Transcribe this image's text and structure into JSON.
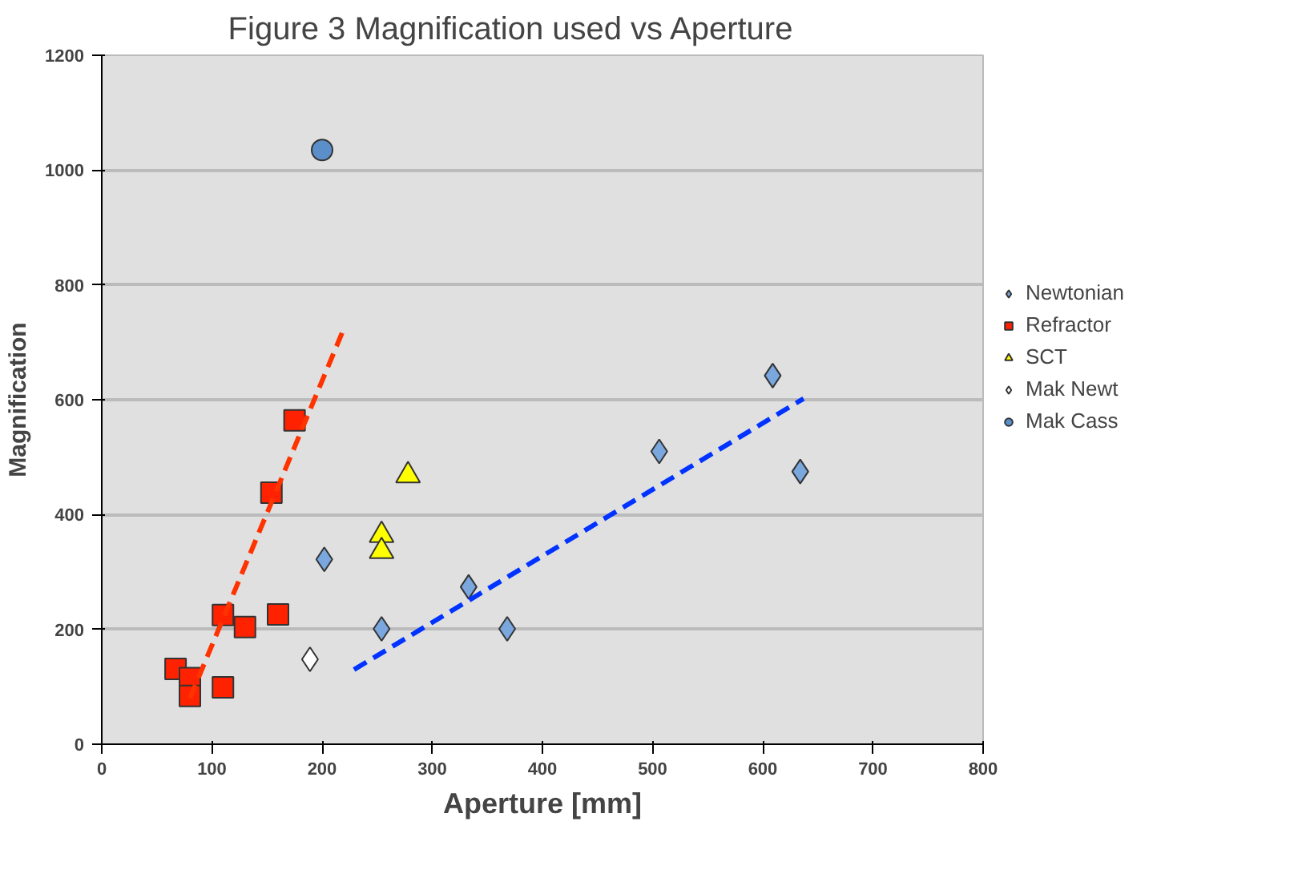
{
  "chart_data": {
    "type": "scatter",
    "title": "Figure 3        Magnification used vs Aperture",
    "xlabel": "Aperture [mm]",
    "ylabel": "Magnification",
    "xlim": [
      0,
      800
    ],
    "ylim": [
      0,
      1200
    ],
    "xticks": [
      0,
      100,
      200,
      300,
      400,
      500,
      600,
      700,
      800
    ],
    "yticks": [
      0,
      200,
      400,
      600,
      800,
      1000,
      1200
    ],
    "grid": "y",
    "legend": "right",
    "series": [
      {
        "name": "Newtonian",
        "type": "scatter",
        "marker": "diamond",
        "color": "#7aa7dd",
        "x": [
          202,
          254,
          333,
          368,
          506,
          609,
          634
        ],
        "values": [
          322,
          201,
          274,
          201,
          510,
          642,
          475
        ]
      },
      {
        "name": "Refractor",
        "type": "scatter",
        "marker": "square",
        "color": "#ff2200",
        "x": [
          67,
          80,
          80,
          110,
          110,
          130,
          160,
          154,
          175
        ],
        "values": [
          131,
          115,
          84,
          99,
          225,
          204,
          226,
          438,
          564
        ]
      },
      {
        "name": "SCT",
        "type": "scatter",
        "marker": "triangle",
        "color": "#ffff00",
        "x": [
          278,
          254,
          254
        ],
        "values": [
          468,
          364,
          336
        ]
      },
      {
        "name": "Mak Newt",
        "type": "scatter",
        "marker": "diamond",
        "color": "#ffffff",
        "x": [
          189
        ],
        "values": [
          148
        ]
      },
      {
        "name": "Mak Cass",
        "type": "scatter",
        "marker": "circle",
        "color": "#5b8fc9",
        "x": [
          200
        ],
        "values": [
          1035
        ]
      },
      {
        "type": "line",
        "line_style": "dashed",
        "color": "#ff3300",
        "x": [
          80,
          220
        ],
        "values": [
          80,
          725
        ]
      },
      {
        "type": "line",
        "line_style": "dashed",
        "color": "#0033ff",
        "x": [
          229,
          637
        ],
        "values": [
          130,
          602
        ]
      }
    ]
  }
}
